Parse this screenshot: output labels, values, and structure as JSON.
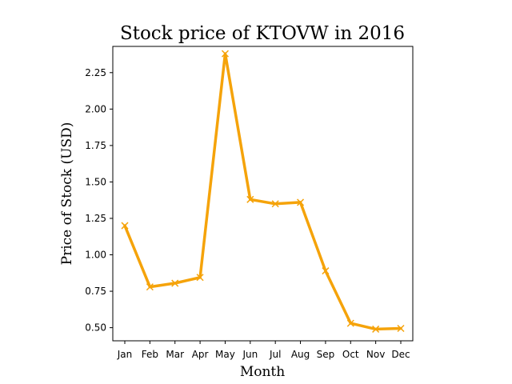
{
  "chart_data": {
    "type": "line",
    "title": "Stock price of KTOVW in 2016",
    "xlabel": "Month",
    "ylabel": "Price of Stock (USD)",
    "categories": [
      "Jan",
      "Feb",
      "Mar",
      "Apr",
      "May",
      "Jun",
      "Jul",
      "Aug",
      "Sep",
      "Oct",
      "Nov",
      "Dec"
    ],
    "series": [
      {
        "values": [
          1.2,
          0.78,
          0.805,
          0.845,
          2.38,
          1.38,
          1.35,
          1.36,
          0.89,
          0.53,
          0.49,
          0.495
        ],
        "color": "#f5a30a",
        "marker": "x"
      }
    ],
    "ylim": [
      0.41,
      2.43
    ],
    "yticks": [
      "0.50",
      "0.75",
      "1.00",
      "1.25",
      "1.50",
      "1.75",
      "2.00",
      "2.25"
    ],
    "grid": false,
    "legend": "none"
  }
}
